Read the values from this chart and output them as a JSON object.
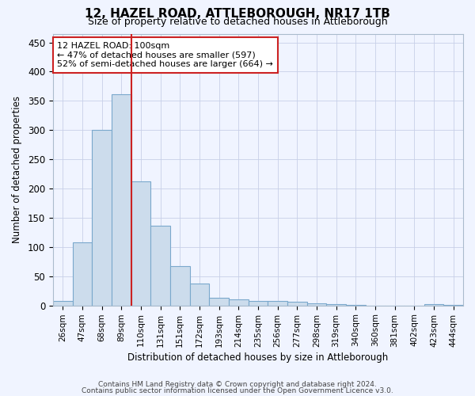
{
  "title": "12, HAZEL ROAD, ATTLEBOROUGH, NR17 1TB",
  "subtitle": "Size of property relative to detached houses in Attleborough",
  "xlabel": "Distribution of detached houses by size in Attleborough",
  "ylabel": "Number of detached properties",
  "categories": [
    "26sqm",
    "47sqm",
    "68sqm",
    "89sqm",
    "110sqm",
    "131sqm",
    "151sqm",
    "172sqm",
    "193sqm",
    "214sqm",
    "235sqm",
    "256sqm",
    "277sqm",
    "298sqm",
    "319sqm",
    "340sqm",
    "360sqm",
    "381sqm",
    "402sqm",
    "423sqm",
    "444sqm"
  ],
  "values": [
    8,
    108,
    300,
    362,
    212,
    136,
    68,
    38,
    13,
    10,
    8,
    8,
    6,
    3,
    2,
    1,
    0,
    0,
    0,
    2,
    1
  ],
  "bar_color": "#ccdcec",
  "bar_edge_color": "#7aa8cc",
  "vline_x": 3.5,
  "vline_color": "#cc2222",
  "annotation_line1": "12 HAZEL ROAD: 100sqm",
  "annotation_line2": "← 47% of detached houses are smaller (597)",
  "annotation_line3": "52% of semi-detached houses are larger (664) →",
  "annotation_box_color": "#ffffff",
  "annotation_box_edge": "#cc2222",
  "ylim": [
    0,
    465
  ],
  "yticks": [
    0,
    50,
    100,
    150,
    200,
    250,
    300,
    350,
    400,
    450
  ],
  "footer1": "Contains HM Land Registry data © Crown copyright and database right 2024.",
  "footer2": "Contains public sector information licensed under the Open Government Licence v3.0.",
  "bg_color": "#f0f4ff",
  "grid_color": "#c8d0e8",
  "title_fontsize": 11,
  "subtitle_fontsize": 9
}
